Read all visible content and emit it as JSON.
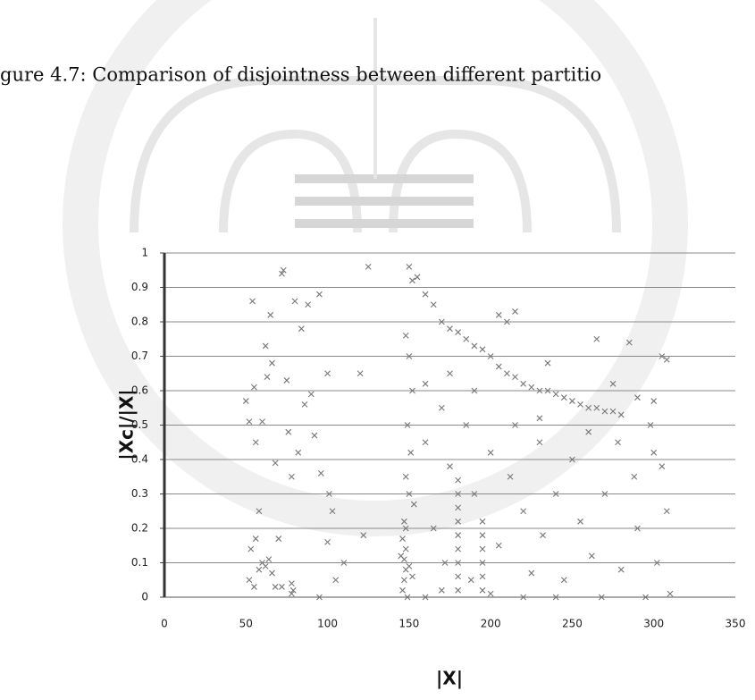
{
  "chart_data": {
    "type": "scatter",
    "caption": "gure 4.7: Comparison of disjointness between different partitio",
    "xlabel": "|X|",
    "ylabel": "|Xc|/|X|",
    "color": "#777777",
    "grid": true,
    "xlim": [
      0,
      350
    ],
    "xticks": [
      0,
      50,
      100,
      150,
      200,
      250,
      300,
      350
    ],
    "ylim": [
      0,
      1
    ],
    "yticks": [
      0,
      0.1,
      0.2,
      0.3,
      0.4,
      0.5,
      0.6,
      0.7,
      0.8,
      0.9,
      1
    ],
    "x": [
      50,
      52,
      54,
      55,
      56,
      58,
      60,
      62,
      63,
      65,
      66,
      68,
      70,
      72,
      73,
      75,
      76,
      78,
      80,
      82,
      84,
      86,
      88,
      90,
      92,
      95,
      96,
      100,
      101,
      103,
      110,
      120,
      125,
      122,
      52,
      55,
      58,
      60,
      62,
      64,
      66,
      68,
      56,
      53,
      78,
      78,
      79,
      95,
      72,
      100,
      105,
      146,
      147,
      148,
      147,
      148,
      146,
      148,
      147,
      149,
      145,
      150,
      152,
      150,
      152,
      155,
      148,
      150,
      152,
      149,
      151,
      148,
      150,
      153,
      160,
      165,
      170,
      175,
      180,
      185,
      190,
      195,
      200,
      205,
      210,
      215,
      220,
      225,
      230,
      235,
      240,
      245,
      250,
      255,
      260,
      265,
      270,
      275,
      280,
      290,
      300,
      305,
      308,
      180,
      180,
      180,
      180,
      180,
      180,
      180,
      180,
      180,
      195,
      195,
      195,
      195,
      195,
      195,
      160,
      165,
      170,
      172,
      175,
      185,
      188,
      190,
      200,
      205,
      210,
      212,
      215,
      220,
      225,
      230,
      232,
      235,
      240,
      245,
      250,
      255,
      260,
      262,
      265,
      268,
      270,
      275,
      278,
      280,
      285,
      288,
      290,
      295,
      298,
      300,
      302,
      305,
      308,
      310,
      240,
      220,
      200,
      160,
      170,
      205,
      215,
      160,
      175,
      190,
      230
    ],
    "values": [
      0.57,
      0.51,
      0.86,
      0.61,
      0.45,
      0.25,
      0.51,
      0.73,
      0.64,
      0.82,
      0.68,
      0.39,
      0.17,
      0.94,
      0.95,
      0.63,
      0.48,
      0.35,
      0.86,
      0.42,
      0.78,
      0.56,
      0.85,
      0.59,
      0.47,
      0.88,
      0.36,
      0.65,
      0.3,
      0.25,
      0.1,
      0.65,
      0.96,
      0.18,
      0.05,
      0.03,
      0.08,
      0.1,
      0.09,
      0.11,
      0.07,
      0.03,
      0.17,
      0.14,
      0.04,
      0.01,
      0.02,
      0,
      0.03,
      0.16,
      0.05,
      0.02,
      0.05,
      0.08,
      0.11,
      0.14,
      0.17,
      0.2,
      0.22,
      0,
      0.12,
      0.09,
      0.06,
      0.96,
      0.92,
      0.93,
      0.76,
      0.7,
      0.6,
      0.5,
      0.42,
      0.35,
      0.3,
      0.27,
      0.88,
      0.85,
      0.8,
      0.78,
      0.77,
      0.75,
      0.73,
      0.72,
      0.7,
      0.67,
      0.65,
      0.64,
      0.62,
      0.61,
      0.6,
      0.6,
      0.59,
      0.58,
      0.57,
      0.56,
      0.55,
      0.55,
      0.54,
      0.54,
      0.53,
      0.58,
      0.57,
      0.7,
      0.69,
      0.02,
      0.06,
      0.1,
      0.14,
      0.18,
      0.22,
      0.26,
      0.3,
      0.34,
      0.02,
      0.06,
      0.1,
      0.14,
      0.18,
      0.22,
      0.45,
      0.2,
      0.55,
      0.1,
      0.38,
      0.5,
      0.05,
      0.3,
      0.42,
      0.15,
      0.8,
      0.35,
      0.5,
      0.25,
      0.07,
      0.45,
      0.18,
      0.68,
      0.3,
      0.05,
      0.4,
      0.22,
      0.48,
      0.12,
      0.75,
      0,
      0.3,
      0.62,
      0.45,
      0.08,
      0.74,
      0.35,
      0.2,
      0,
      0.5,
      0.42,
      0.1,
      0.38,
      0.25,
      0.01,
      0,
      0,
      0.01,
      0,
      0.02,
      0.82,
      0.83,
      0.62,
      0.65,
      0.6,
      0.52
    ]
  }
}
